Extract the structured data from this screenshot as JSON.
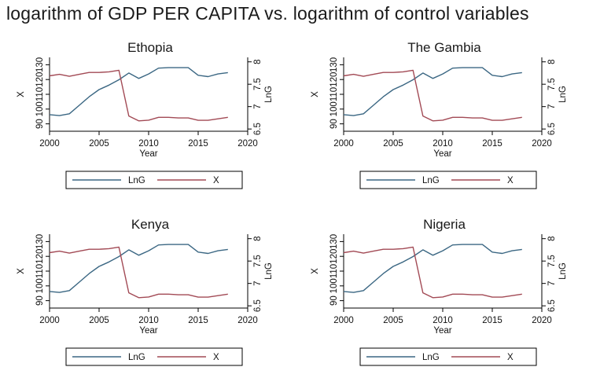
{
  "title": "logarithm of GDP PER CAPITA vs. logarithm of control variables",
  "colors": {
    "lng": "#3b6783",
    "x": "#a24a55",
    "axis": "#000000"
  },
  "chart_data": [
    {
      "type": "line",
      "title": "Ethopia",
      "xlabel": "Year",
      "ylabel_left": "X",
      "ylabel_right": "LnG",
      "xlim": [
        2000,
        2020
      ],
      "x_ticks": [
        2000,
        2005,
        2010,
        2015,
        2020
      ],
      "left_ylim": [
        85,
        135
      ],
      "left_ticks": [
        "90",
        "100",
        "110",
        "120",
        "130"
      ],
      "right_ylim": [
        6.45,
        8.1
      ],
      "right_ticks": [
        "6.5",
        "7",
        "7.5",
        "8"
      ],
      "legend_position": "bottom",
      "series": [
        {
          "name": "LnG",
          "axis": "right",
          "color": "#3b6783",
          "x": [
            2000,
            2001,
            2002,
            2003,
            2004,
            2005,
            2006,
            2007,
            2008,
            2009,
            2010,
            2011,
            2012,
            2013,
            2014,
            2015,
            2016,
            2017,
            2018
          ],
          "values": [
            6.82,
            6.8,
            6.84,
            7.03,
            7.22,
            7.38,
            7.48,
            7.6,
            7.75,
            7.63,
            7.73,
            7.86,
            7.87,
            7.87,
            7.87,
            7.7,
            7.67,
            7.73,
            7.76
          ]
        },
        {
          "name": "X",
          "axis": "left",
          "color": "#a24a55",
          "x": [
            2000,
            2001,
            2002,
            2003,
            2004,
            2005,
            2006,
            2007,
            2008,
            2009,
            2010,
            2011,
            2012,
            2013,
            2014,
            2015,
            2016,
            2017,
            2018
          ],
          "values": [
            122.5,
            123.5,
            122.2,
            123.5,
            124.8,
            124.8,
            125.2,
            126.3,
            95.3,
            92.0,
            92.5,
            94.4,
            94.4,
            94.0,
            94.0,
            92.4,
            92.4,
            93.4,
            94.4
          ]
        }
      ]
    },
    {
      "type": "line",
      "title": "The Gambia",
      "xlabel": "Year",
      "ylabel_left": "X",
      "ylabel_right": "LnG",
      "xlim": [
        2000,
        2020
      ],
      "x_ticks": [
        2000,
        2005,
        2010,
        2015,
        2020
      ],
      "left_ylim": [
        85,
        135
      ],
      "left_ticks": [
        "90",
        "100",
        "110",
        "120",
        "130"
      ],
      "right_ylim": [
        6.45,
        8.1
      ],
      "right_ticks": [
        "6.5",
        "7",
        "7.5",
        "8"
      ],
      "legend_position": "bottom",
      "series": [
        {
          "name": "LnG",
          "axis": "right",
          "color": "#3b6783",
          "x": [
            2000,
            2001,
            2002,
            2003,
            2004,
            2005,
            2006,
            2007,
            2008,
            2009,
            2010,
            2011,
            2012,
            2013,
            2014,
            2015,
            2016,
            2017,
            2018
          ],
          "values": [
            6.82,
            6.8,
            6.84,
            7.03,
            7.22,
            7.38,
            7.48,
            7.6,
            7.75,
            7.63,
            7.73,
            7.86,
            7.87,
            7.87,
            7.87,
            7.7,
            7.67,
            7.73,
            7.76
          ]
        },
        {
          "name": "X",
          "axis": "left",
          "color": "#a24a55",
          "x": [
            2000,
            2001,
            2002,
            2003,
            2004,
            2005,
            2006,
            2007,
            2008,
            2009,
            2010,
            2011,
            2012,
            2013,
            2014,
            2015,
            2016,
            2017,
            2018
          ],
          "values": [
            122.5,
            123.5,
            122.2,
            123.5,
            124.8,
            124.8,
            125.2,
            126.3,
            95.3,
            92.0,
            92.5,
            94.4,
            94.4,
            94.0,
            94.0,
            92.4,
            92.4,
            93.4,
            94.4
          ]
        }
      ]
    },
    {
      "type": "line",
      "title": "Kenya",
      "xlabel": "Year",
      "ylabel_left": "X",
      "ylabel_right": "LnG",
      "xlim": [
        2000,
        2020
      ],
      "x_ticks": [
        2000,
        2005,
        2010,
        2015,
        2020
      ],
      "left_ylim": [
        85,
        135
      ],
      "left_ticks": [
        "90",
        "100",
        "110",
        "120",
        "130"
      ],
      "right_ylim": [
        6.45,
        8.1
      ],
      "right_ticks": [
        "6.5",
        "7",
        "7.5",
        "8"
      ],
      "legend_position": "bottom",
      "series": [
        {
          "name": "LnG",
          "axis": "right",
          "color": "#3b6783",
          "x": [
            2000,
            2001,
            2002,
            2003,
            2004,
            2005,
            2006,
            2007,
            2008,
            2009,
            2010,
            2011,
            2012,
            2013,
            2014,
            2015,
            2016,
            2017,
            2018
          ],
          "values": [
            6.82,
            6.8,
            6.84,
            7.03,
            7.22,
            7.38,
            7.48,
            7.6,
            7.75,
            7.63,
            7.73,
            7.86,
            7.87,
            7.87,
            7.87,
            7.7,
            7.67,
            7.73,
            7.76
          ]
        },
        {
          "name": "X",
          "axis": "left",
          "color": "#a24a55",
          "x": [
            2000,
            2001,
            2002,
            2003,
            2004,
            2005,
            2006,
            2007,
            2008,
            2009,
            2010,
            2011,
            2012,
            2013,
            2014,
            2015,
            2016,
            2017,
            2018
          ],
          "values": [
            122.5,
            123.5,
            122.2,
            123.5,
            124.8,
            124.8,
            125.2,
            126.3,
            95.3,
            92.0,
            92.5,
            94.4,
            94.4,
            94.0,
            94.0,
            92.4,
            92.4,
            93.4,
            94.4
          ]
        }
      ]
    },
    {
      "type": "line",
      "title": "Nigeria",
      "xlabel": "Year",
      "ylabel_left": "X",
      "ylabel_right": "LnG",
      "xlim": [
        2000,
        2020
      ],
      "x_ticks": [
        2000,
        2005,
        2010,
        2015,
        2020
      ],
      "left_ylim": [
        85,
        135
      ],
      "left_ticks": [
        "90",
        "100",
        "110",
        "120",
        "130"
      ],
      "right_ylim": [
        6.45,
        8.1
      ],
      "right_ticks": [
        "6.5",
        "7",
        "7.5",
        "8"
      ],
      "legend_position": "bottom",
      "series": [
        {
          "name": "LnG",
          "axis": "right",
          "color": "#3b6783",
          "x": [
            2000,
            2001,
            2002,
            2003,
            2004,
            2005,
            2006,
            2007,
            2008,
            2009,
            2010,
            2011,
            2012,
            2013,
            2014,
            2015,
            2016,
            2017,
            2018
          ],
          "values": [
            6.82,
            6.8,
            6.84,
            7.03,
            7.22,
            7.38,
            7.48,
            7.6,
            7.75,
            7.63,
            7.73,
            7.86,
            7.87,
            7.87,
            7.87,
            7.7,
            7.67,
            7.73,
            7.76
          ]
        },
        {
          "name": "X",
          "axis": "left",
          "color": "#a24a55",
          "x": [
            2000,
            2001,
            2002,
            2003,
            2004,
            2005,
            2006,
            2007,
            2008,
            2009,
            2010,
            2011,
            2012,
            2013,
            2014,
            2015,
            2016,
            2017,
            2018
          ],
          "values": [
            122.5,
            123.5,
            122.2,
            123.5,
            124.8,
            124.8,
            125.2,
            126.3,
            95.3,
            92.0,
            92.5,
            94.4,
            94.4,
            94.0,
            94.0,
            92.4,
            92.4,
            93.4,
            94.4
          ]
        }
      ]
    }
  ]
}
